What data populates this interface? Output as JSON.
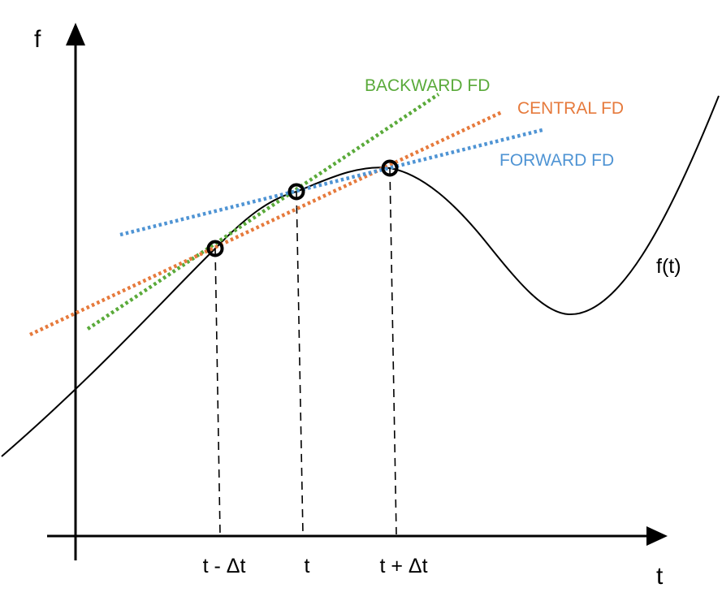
{
  "axes": {
    "y_label": "f",
    "x_label": "t"
  },
  "curve": {
    "label": "f(t)",
    "color": "#000000"
  },
  "ticks": [
    "t - Δt",
    "t",
    "t + Δt"
  ],
  "lines": {
    "backward": {
      "label": "BACKWARD FD",
      "color": "#5aaa3a"
    },
    "central": {
      "label": "CENTRAL FD",
      "color": "#e67a3c"
    },
    "forward": {
      "label": "FORWARD FD",
      "color": "#4f94d4"
    }
  },
  "marker_color": "#000000",
  "guide_color": "#000000"
}
